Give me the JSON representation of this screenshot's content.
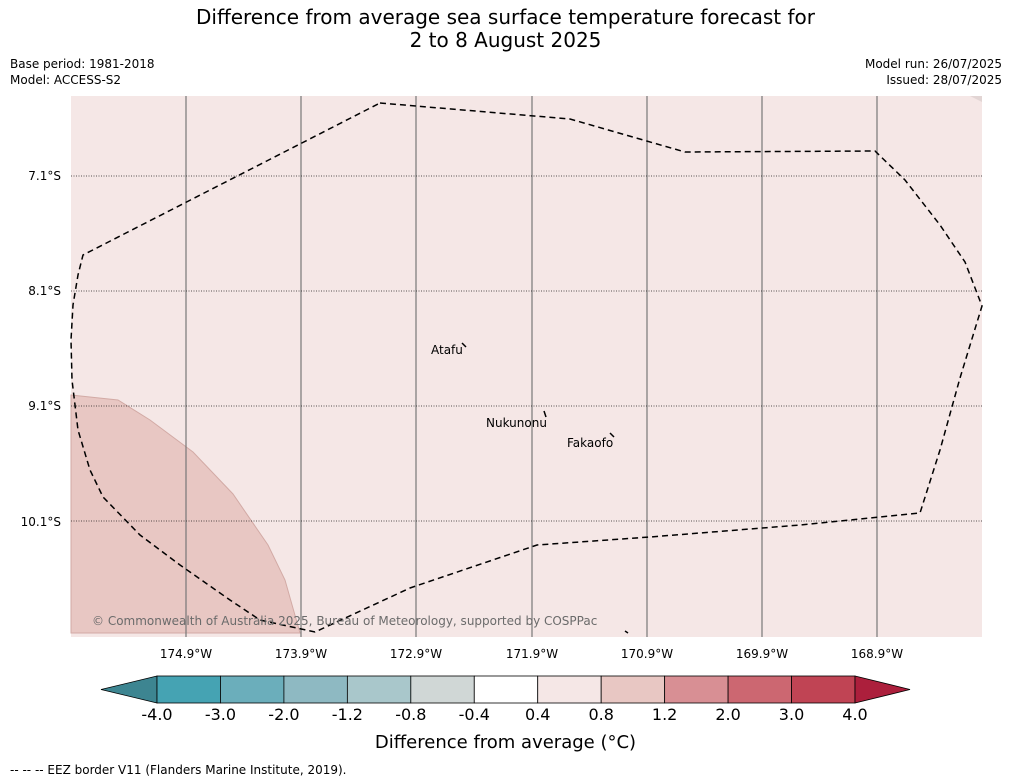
{
  "title": {
    "line1": "Difference from average sea surface temperature forecast for",
    "line2": "2 to 8 August 2025"
  },
  "meta": {
    "base_period": "Base period: 1981-2018",
    "model": "Model: ACCESS-S2",
    "model_run": "Model run: 26/07/2025",
    "issued": "Issued: 28/07/2025"
  },
  "latitudes": [
    "7.1°S",
    "8.1°S",
    "9.1°S",
    "10.1°S"
  ],
  "longitudes": [
    "174.9°W",
    "173.9°W",
    "172.9°W",
    "171.9°W",
    "170.9°W",
    "169.9°W",
    "168.9°W"
  ],
  "places": {
    "atafu": "Atafu",
    "nukunonu": "Nukunonu",
    "fakaofo": "Fakaofo"
  },
  "copyright": "© Commonwealth of Australia 2025, Bureau of Meteorology, supported by COSPPac",
  "colorbar": {
    "ticks": [
      "-4.0",
      "-3.0",
      "-2.0",
      "-1.2",
      "-0.8",
      "-0.4",
      "0.4",
      "0.8",
      "1.2",
      "2.0",
      "3.0",
      "4.0"
    ],
    "colors": [
      "#3d8591",
      "#45a3b3",
      "#6baebb",
      "#8eb9c2",
      "#a9c7cb",
      "#d0d7d6",
      "#ffffff",
      "#f5e7e6",
      "#e8c7c3",
      "#d88f94",
      "#cc6771",
      "#c04454",
      "#ac1f3c"
    ],
    "label": "Difference from average (°C)"
  },
  "fill_colors": {
    "band_0.4_0.8": "#f5e7e6",
    "band_0.8_1.2": "#e8c7c3"
  },
  "footnote": "--  --  -- EEZ border V11 (Flanders Marine Institute, 2019)."
}
